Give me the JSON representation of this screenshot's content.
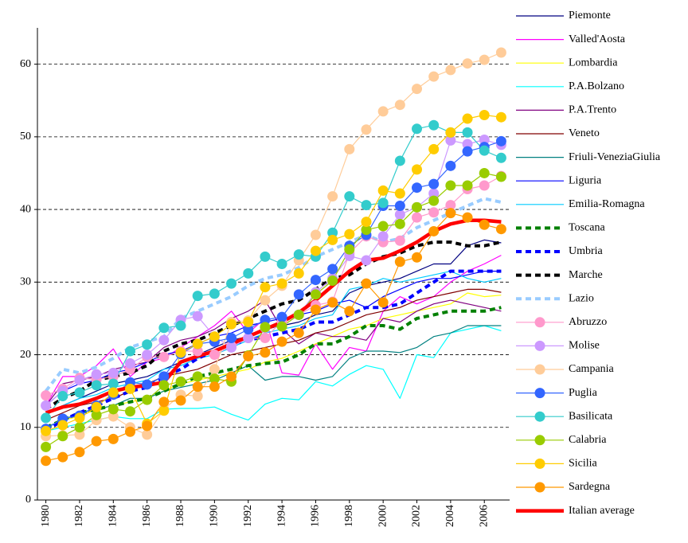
{
  "chart_data": {
    "type": "line",
    "x": [
      1980,
      1981,
      1982,
      1983,
      1984,
      1985,
      1986,
      1987,
      1988,
      1989,
      1990,
      1991,
      1992,
      1993,
      1994,
      1995,
      1996,
      1997,
      1998,
      1999,
      2000,
      2001,
      2002,
      2003,
      2004,
      2005,
      2006,
      2007
    ],
    "xlim": [
      1979.5,
      2007.5
    ],
    "xticks": [
      1980,
      1982,
      1984,
      1986,
      1988,
      1990,
      1992,
      1994,
      1996,
      1998,
      2000,
      2002,
      2004,
      2006
    ],
    "ylim": [
      0,
      65
    ],
    "yticks": [
      0,
      10,
      20,
      30,
      40,
      50,
      60
    ],
    "grid": true,
    "legend": "right",
    "series": [
      {
        "name": "Piemonte",
        "color": "#000080",
        "line_style": "solid",
        "values": [
          12,
          13,
          14,
          15,
          16,
          16.5,
          17,
          18,
          19,
          20,
          21,
          22,
          22.5,
          23.5,
          24,
          24.5,
          25.5,
          26,
          28.5,
          29.5,
          30,
          30.5,
          31.5,
          32.5,
          32.5,
          35,
          35.8,
          35.4
        ]
      },
      {
        "name": "Valled'Aosta",
        "color": "#ff00ff",
        "line_style": "solid",
        "values": [
          13,
          17,
          17,
          18.5,
          20.8,
          17,
          19,
          19.5,
          21,
          22.5,
          24,
          26,
          23,
          25,
          17.5,
          17.2,
          21.5,
          18,
          21,
          20.5,
          26,
          28,
          27,
          28,
          30,
          31.5,
          32.5,
          33.7
        ]
      },
      {
        "name": "Lombardia",
        "color": "#ffff00",
        "line_style": "solid",
        "values": [
          10,
          11,
          11.5,
          12.5,
          13,
          13.5,
          14,
          15,
          16,
          16.5,
          17,
          17.5,
          18,
          19,
          19.5,
          20.5,
          21.5,
          22.5,
          23.5,
          24,
          25,
          25.5,
          26,
          26.5,
          27,
          28.5,
          28,
          28.2
        ]
      },
      {
        "name": "P.A.Bolzano",
        "color": "#00ffff",
        "line_style": "solid",
        "values": [
          9.5,
          10,
          10.5,
          11,
          11.5,
          11.2,
          11.2,
          12.5,
          12.6,
          12.6,
          12.8,
          11.8,
          11,
          13.2,
          14,
          13.8,
          16.3,
          15.7,
          17.3,
          18.5,
          18,
          14,
          20,
          19.6,
          23,
          23.5,
          24,
          23.3
        ]
      },
      {
        "name": "P.A.Trento",
        "color": "#800080",
        "line_style": "solid",
        "values": [
          13,
          16,
          16.5,
          17,
          18,
          18.5,
          19,
          21,
          22,
          22.5,
          23.5,
          25,
          26,
          27.5,
          23.5,
          21.5,
          23,
          22.5,
          22.5,
          22,
          25,
          24.5,
          26,
          27,
          27.5,
          27,
          26.5,
          26
        ]
      },
      {
        "name": "Veneto",
        "color": "#800000",
        "line_style": "solid",
        "values": [
          11,
          12,
          13,
          13.5,
          14,
          15,
          16,
          17,
          17.5,
          18,
          19,
          20,
          20.5,
          21,
          21.5,
          22,
          23,
          23.5,
          24.5,
          25.5,
          26,
          26.5,
          27.5,
          28,
          28.5,
          29,
          29,
          28.6
        ]
      },
      {
        "name": "Friuli-VeneziaGiulia",
        "color": "#008080",
        "line_style": "solid",
        "values": [
          10,
          11,
          12,
          12.5,
          13,
          14,
          14,
          15,
          15.5,
          16,
          16.5,
          17.5,
          18.5,
          16.5,
          17,
          17,
          16.5,
          17,
          19.5,
          20.5,
          20.5,
          20.3,
          21,
          22.5,
          23,
          24,
          24,
          24
        ]
      },
      {
        "name": "Liguria",
        "color": "#0000ff",
        "line_style": "solid",
        "values": [
          13,
          15,
          16,
          16.5,
          17.5,
          18,
          19,
          20,
          20.5,
          21.5,
          22.5,
          23,
          24,
          24.5,
          25,
          25.5,
          26,
          27,
          27.5,
          26.5,
          28,
          29,
          30,
          30.5,
          30.5,
          31,
          31.5,
          31.5
        ]
      },
      {
        "name": "Emilia-Romagna",
        "color": "#00ccff",
        "line_style": "solid",
        "values": [
          12,
          13,
          14,
          14.5,
          15.5,
          16,
          16.5,
          18,
          18.5,
          19.5,
          20,
          21,
          22,
          23,
          23.5,
          24,
          25,
          25.5,
          29,
          29.5,
          30.5,
          30,
          30.5,
          31,
          31.5,
          30.5,
          30,
          30.5
        ]
      },
      {
        "name": "Toscana",
        "color": "#008000",
        "line_style": "dashed",
        "values": [
          10,
          11,
          12,
          12.5,
          13,
          13.5,
          14,
          15,
          16,
          17,
          17.5,
          18,
          18.5,
          18.8,
          19,
          20,
          21.5,
          21.5,
          22.5,
          24,
          24,
          23.5,
          25,
          25.5,
          26,
          26,
          26,
          26.5
        ]
      },
      {
        "name": "Umbria",
        "color": "#0000ff",
        "line_style": "dashed",
        "values": [
          9.5,
          11,
          12,
          13,
          14,
          15,
          15.5,
          17,
          18,
          19.5,
          20.5,
          21.5,
          22,
          22.5,
          23,
          23.5,
          24.5,
          24.5,
          25.5,
          26.5,
          26.5,
          27,
          28.5,
          30,
          31.5,
          31.5,
          31.5,
          31.5
        ]
      },
      {
        "name": "Marche",
        "color": "#000000",
        "line_style": "dashed",
        "values": [
          12.5,
          14,
          15,
          16.5,
          17,
          17.5,
          18.5,
          20.5,
          21.5,
          22,
          23,
          24,
          25,
          26,
          27,
          27.5,
          29,
          30.5,
          31,
          32.5,
          33.5,
          34,
          35,
          35.5,
          35.5,
          35,
          35,
          35.5
        ]
      },
      {
        "name": "Lazio",
        "color": "#99ccff",
        "line_style": "dashed",
        "values": [
          15,
          18,
          17.5,
          18.3,
          19.5,
          21,
          21.8,
          22.5,
          25,
          26,
          27,
          28,
          29.5,
          30.5,
          31,
          32,
          33.5,
          34.5,
          35.5,
          36.5,
          35.5,
          36,
          37.5,
          38.5,
          39.5,
          40.5,
          41.5,
          41
        ]
      },
      {
        "name": "Abruzzo",
        "color": "#ff99cc",
        "line_style": "markers",
        "values": [
          14.4,
          15.3,
          16.8,
          16.6,
          17,
          18,
          19.7,
          19.7,
          20.5,
          20.5,
          20,
          21.2,
          22.3,
          22.3,
          24.6,
          25.5,
          26.8,
          27.3,
          34,
          36.3,
          35.5,
          35.7,
          38.9,
          39.6,
          40.6,
          42.8,
          43.3,
          44.6
        ]
      },
      {
        "name": "Molise",
        "color": "#cc99ff",
        "line_style": "markers",
        "values": [
          13,
          15,
          16.5,
          17.3,
          17.5,
          18.8,
          20,
          22,
          24.8,
          25.3,
          22.5,
          21,
          22.3,
          23.7,
          23.9,
          25.5,
          28.6,
          30.5,
          33.6,
          33,
          36.3,
          39.3,
          40.3,
          42.2,
          49.5,
          49,
          49.6,
          48.9
        ]
      },
      {
        "name": "Campania",
        "color": "#ffcc99",
        "line_style": "markers",
        "values": [
          8.8,
          8.9,
          9,
          11,
          11.5,
          10,
          9,
          12.5,
          14.5,
          14.3,
          18,
          24.5,
          24.7,
          27.5,
          29.5,
          33,
          36.5,
          41.8,
          48.3,
          51,
          53.5,
          54.4,
          56.6,
          58.3,
          59.2,
          60.1,
          60.6,
          61.6
        ]
      },
      {
        "name": "Puglia",
        "color": "#3366ff",
        "line_style": "markers",
        "values": [
          9.8,
          11.2,
          11.6,
          13,
          14.5,
          16.2,
          15.9,
          17,
          20.1,
          21.5,
          21.8,
          22.3,
          23.5,
          24.8,
          25.2,
          28.3,
          30.3,
          31.8,
          35,
          36.5,
          40.5,
          40.5,
          43,
          43.5,
          46,
          48,
          48.6,
          49.4
        ]
      },
      {
        "name": "Basilicata",
        "color": "#33cccc",
        "line_style": "markers",
        "values": [
          11.3,
          14.3,
          14.8,
          15.8,
          16,
          20.5,
          21.4,
          23.7,
          24,
          28.1,
          28.4,
          29.8,
          31.2,
          33.5,
          32.5,
          33.8,
          33.5,
          36.8,
          41.8,
          40.6,
          40.9,
          46.7,
          51.1,
          51.6,
          50.6,
          50.6,
          48.1,
          47.1
        ]
      },
      {
        "name": "Calabria",
        "color": "#99cc00",
        "line_style": "markers",
        "values": [
          7.3,
          8.8,
          10,
          11.7,
          12.5,
          12.2,
          13.8,
          15.8,
          16.3,
          17,
          16.7,
          16.3,
          19.9,
          23.8,
          23.9,
          25.5,
          28.3,
          30.2,
          34.5,
          37.2,
          37.7,
          38,
          40.3,
          41.2,
          43.3,
          43.3,
          45,
          44.5
        ]
      },
      {
        "name": "Sicilia",
        "color": "#ffcc00",
        "line_style": "markers",
        "values": [
          9.5,
          10.3,
          11.3,
          12.8,
          14.8,
          15.3,
          10.5,
          12.3,
          20.3,
          21.5,
          22.5,
          24.2,
          24.5,
          29.3,
          29.8,
          31.2,
          34.3,
          35.8,
          36.6,
          38.3,
          42.6,
          42.2,
          45.5,
          48.3,
          50.6,
          52.5,
          53,
          52.7
        ]
      },
      {
        "name": "Sardegna",
        "color": "#ff9900",
        "line_style": "markers",
        "values": [
          5.4,
          5.9,
          6.6,
          8.1,
          8.4,
          9.4,
          10.2,
          13.5,
          13.7,
          15.6,
          15.6,
          17,
          19.8,
          20.3,
          21.8,
          23,
          26.2,
          27.2,
          26,
          29.8,
          27.2,
          32.8,
          33.4,
          37,
          39.5,
          38.9,
          37.9,
          37.3
        ]
      },
      {
        "name": "Italian average",
        "color": "#ff0000",
        "line_style": "thick",
        "values": [
          12,
          12.8,
          13.2,
          14,
          15,
          15.5,
          15.8,
          16.2,
          19,
          19.8,
          20.5,
          21.5,
          22.5,
          23.5,
          24.5,
          25.8,
          27.5,
          29.5,
          31.5,
          33,
          33.3,
          34.3,
          35.5,
          37,
          38,
          38.5,
          38.5,
          38.3
        ]
      }
    ]
  }
}
